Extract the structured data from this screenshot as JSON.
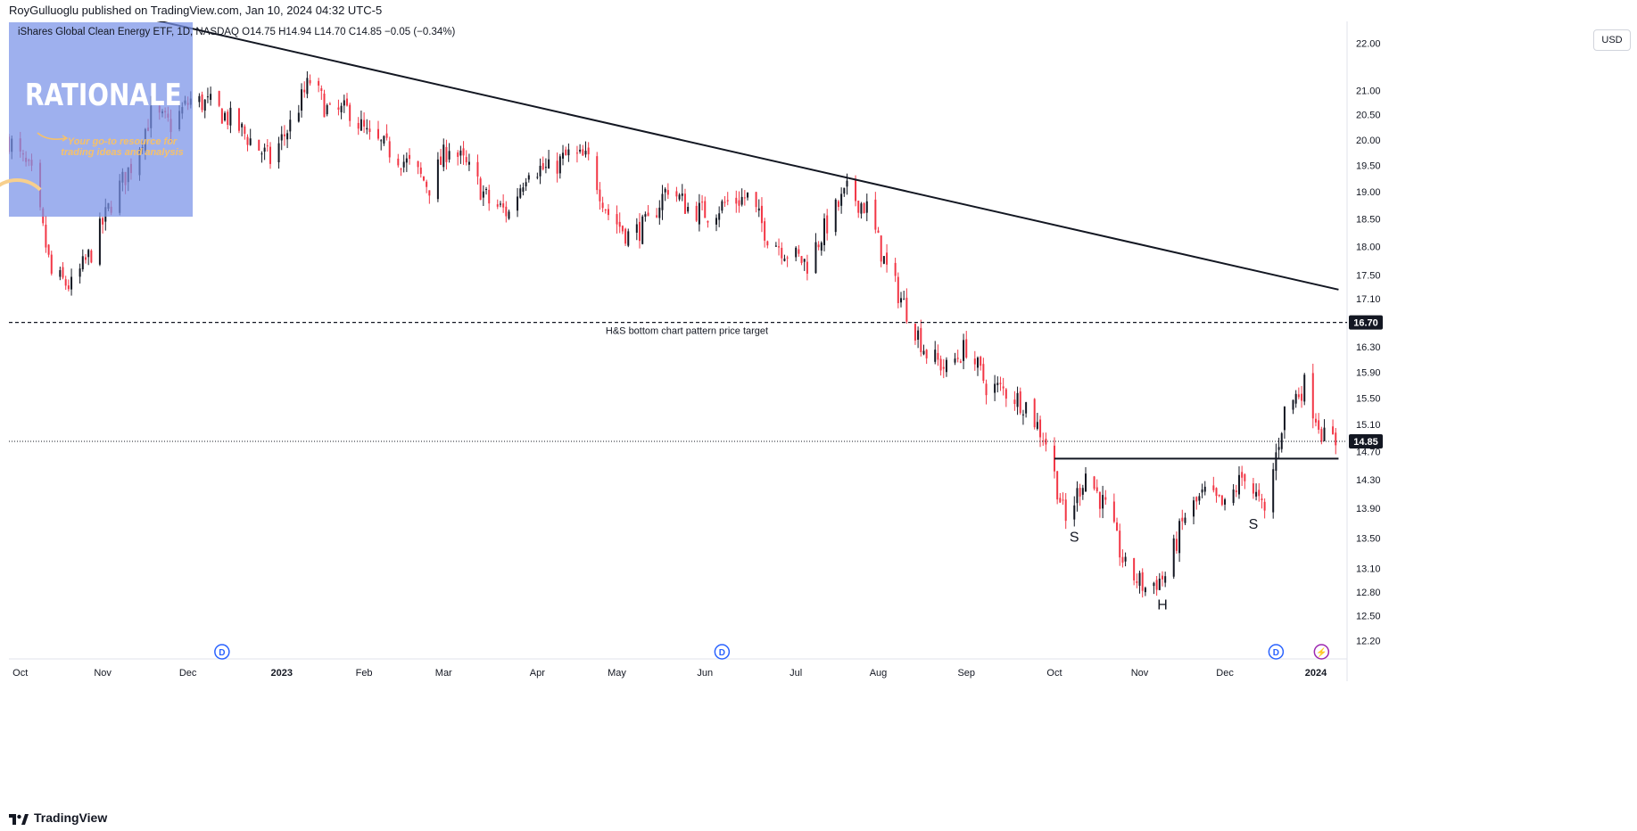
{
  "header": {
    "published_text": "RoyGulluoglu published on TradingView.com, Jan 10, 2024 04:32 UTC-5"
  },
  "symbol_line": "iShares Global Clean Energy ETF, 1D, NASDAQ  O14.75  H14.94  L14.70  C14.85  −0.05 (−0.34%)",
  "currency_button": "USD",
  "logo": {
    "title": "RATIONALE",
    "tagline": "Your go-to resource for trading ideas and analysis"
  },
  "footer": {
    "brand": "TradingView"
  },
  "colors": {
    "up": "#131722",
    "down": "#f23645",
    "trendline": "#131722",
    "dashed": "#131722",
    "dividend_badge": "#2962ff",
    "split_badge": "#9c27b0",
    "logo_bg": "#7991e8",
    "logo_tagline": "#f6c16a"
  },
  "chart_data": {
    "type": "candlestick",
    "title": "iShares Global Clean Energy ETF, 1D, NASDAQ",
    "ohlc_last": {
      "open": 14.75,
      "high": 14.94,
      "low": 14.7,
      "close": 14.85,
      "change": -0.05,
      "change_pct": -0.34
    },
    "y_axis": {
      "scale": "log",
      "ticks": [
        22.0,
        21.0,
        20.5,
        20.0,
        19.5,
        19.0,
        18.5,
        18.0,
        17.5,
        17.1,
        16.3,
        15.9,
        15.5,
        15.1,
        14.7,
        14.3,
        13.9,
        13.5,
        13.1,
        12.8,
        12.5,
        12.2
      ],
      "labels": [
        "22.00",
        "21.00",
        "20.50",
        "20.00",
        "19.50",
        "19.00",
        "18.50",
        "18.00",
        "17.50",
        "17.10",
        "16.30",
        "15.90",
        "15.50",
        "15.10",
        "14.70",
        "14.30",
        "13.90",
        "13.50",
        "13.10",
        "12.80",
        "12.50",
        "12.20"
      ],
      "highlight_labels": [
        {
          "value": 16.7,
          "label": "16.70"
        },
        {
          "value": 14.85,
          "label": "14.85"
        }
      ]
    },
    "x_axis": {
      "labels": [
        {
          "label": "Oct",
          "date": "2022-10-03",
          "bold": false
        },
        {
          "label": "Nov",
          "date": "2022-11-01",
          "bold": false
        },
        {
          "label": "Dec",
          "date": "2022-12-01",
          "bold": false
        },
        {
          "label": "2023",
          "date": "2023-01-03",
          "bold": true
        },
        {
          "label": "Feb",
          "date": "2023-02-01",
          "bold": false
        },
        {
          "label": "Mar",
          "date": "2023-03-01",
          "bold": false
        },
        {
          "label": "Apr",
          "date": "2023-04-03",
          "bold": false
        },
        {
          "label": "May",
          "date": "2023-05-01",
          "bold": false
        },
        {
          "label": "Jun",
          "date": "2023-06-01",
          "bold": false
        },
        {
          "label": "Jul",
          "date": "2023-07-03",
          "bold": false
        },
        {
          "label": "Aug",
          "date": "2023-08-01",
          "bold": false
        },
        {
          "label": "Sep",
          "date": "2023-09-01",
          "bold": false
        },
        {
          "label": "Oct",
          "date": "2023-10-02",
          "bold": false
        },
        {
          "label": "Nov",
          "date": "2023-11-01",
          "bold": false
        },
        {
          "label": "Dec",
          "date": "2023-12-01",
          "bold": false
        },
        {
          "label": "2024",
          "date": "2024-01-02",
          "bold": true
        }
      ]
    },
    "anchors": [
      {
        "date": "2022-09-29",
        "close": 20.0
      },
      {
        "date": "2022-10-07",
        "close": 19.3
      },
      {
        "date": "2022-10-14",
        "close": 17.5
      },
      {
        "date": "2022-10-21",
        "close": 17.3
      },
      {
        "date": "2022-10-28",
        "close": 17.9
      },
      {
        "date": "2022-11-04",
        "close": 18.8
      },
      {
        "date": "2022-11-11",
        "close": 19.5
      },
      {
        "date": "2022-11-18",
        "close": 20.5
      },
      {
        "date": "2022-11-25",
        "close": 20.3
      },
      {
        "date": "2022-12-02",
        "close": 20.8
      },
      {
        "date": "2022-12-09",
        "close": 20.7
      },
      {
        "date": "2022-12-16",
        "close": 20.4
      },
      {
        "date": "2022-12-23",
        "close": 20.0
      },
      {
        "date": "2022-12-30",
        "close": 19.6
      },
      {
        "date": "2023-01-06",
        "close": 20.3
      },
      {
        "date": "2023-01-13",
        "close": 21.2
      },
      {
        "date": "2023-01-20",
        "close": 20.5
      },
      {
        "date": "2023-01-27",
        "close": 20.6
      },
      {
        "date": "2023-02-03",
        "close": 20.0
      },
      {
        "date": "2023-02-10",
        "close": 19.8
      },
      {
        "date": "2023-02-17",
        "close": 19.5
      },
      {
        "date": "2023-02-24",
        "close": 19.1
      },
      {
        "date": "2023-03-03",
        "close": 19.9
      },
      {
        "date": "2023-03-10",
        "close": 19.4
      },
      {
        "date": "2023-03-17",
        "close": 18.8
      },
      {
        "date": "2023-03-24",
        "close": 18.6
      },
      {
        "date": "2023-03-31",
        "close": 19.5
      },
      {
        "date": "2023-04-07",
        "close": 19.4
      },
      {
        "date": "2023-04-14",
        "close": 19.7
      },
      {
        "date": "2023-04-21",
        "close": 19.6
      },
      {
        "date": "2023-04-28",
        "close": 18.6
      },
      {
        "date": "2023-05-05",
        "close": 18.2
      },
      {
        "date": "2023-05-12",
        "close": 18.4
      },
      {
        "date": "2023-05-19",
        "close": 19.1
      },
      {
        "date": "2023-05-26",
        "close": 18.7
      },
      {
        "date": "2023-06-02",
        "close": 18.6
      },
      {
        "date": "2023-06-09",
        "close": 18.8
      },
      {
        "date": "2023-06-16",
        "close": 18.9
      },
      {
        "date": "2023-06-23",
        "close": 18.2
      },
      {
        "date": "2023-06-30",
        "close": 17.9
      },
      {
        "date": "2023-07-07",
        "close": 17.7
      },
      {
        "date": "2023-07-14",
        "close": 18.4
      },
      {
        "date": "2023-07-21",
        "close": 19.0
      },
      {
        "date": "2023-07-28",
        "close": 18.7
      },
      {
        "date": "2023-08-04",
        "close": 17.6
      },
      {
        "date": "2023-08-11",
        "close": 16.9
      },
      {
        "date": "2023-08-18",
        "close": 16.2
      },
      {
        "date": "2023-08-25",
        "close": 15.95
      },
      {
        "date": "2023-09-01",
        "close": 16.3
      },
      {
        "date": "2023-09-08",
        "close": 15.7
      },
      {
        "date": "2023-09-15",
        "close": 15.6
      },
      {
        "date": "2023-09-22",
        "close": 15.4
      },
      {
        "date": "2023-09-29",
        "close": 14.85
      },
      {
        "date": "2023-10-06",
        "close": 13.7
      },
      {
        "date": "2023-10-13",
        "close": 14.4
      },
      {
        "date": "2023-10-20",
        "close": 13.9
      },
      {
        "date": "2023-10-27",
        "close": 13.1
      },
      {
        "date": "2023-11-03",
        "close": 12.85
      },
      {
        "date": "2023-11-10",
        "close": 13.0
      },
      {
        "date": "2023-11-17",
        "close": 13.8
      },
      {
        "date": "2023-11-24",
        "close": 14.1
      },
      {
        "date": "2023-12-01",
        "close": 13.9
      },
      {
        "date": "2023-12-08",
        "close": 14.4
      },
      {
        "date": "2023-12-15",
        "close": 13.8
      },
      {
        "date": "2023-12-22",
        "close": 15.3
      },
      {
        "date": "2023-12-29",
        "close": 15.7
      },
      {
        "date": "2024-01-05",
        "close": 14.9
      },
      {
        "date": "2024-01-09",
        "close": 14.85
      }
    ],
    "annotations": {
      "price_target_line": {
        "value": 16.7,
        "label": "H&S bottom chart pattern price target",
        "style": "dashed"
      },
      "neckline": {
        "value": 14.6,
        "from_date": "2023-10-02",
        "to_date": "2024-01-10",
        "style": "solid"
      },
      "last_price_line": {
        "value": 14.85,
        "style": "dotted"
      },
      "trendline": {
        "from": {
          "date": "2022-10-03",
          "value": 23.2
        },
        "to": {
          "date": "2024-01-10",
          "value": 17.25
        }
      },
      "pattern_labels": [
        {
          "text": "S",
          "date": "2023-10-09",
          "value": 13.45
        },
        {
          "text": "H",
          "date": "2023-11-09",
          "value": 12.58
        },
        {
          "text": "S",
          "date": "2023-12-11",
          "value": 13.62
        }
      ],
      "event_badges": [
        {
          "type": "dividend",
          "text": "D",
          "date": "2022-12-13"
        },
        {
          "type": "dividend",
          "text": "D",
          "date": "2023-06-07"
        },
        {
          "type": "dividend",
          "text": "D",
          "date": "2023-12-19"
        },
        {
          "type": "split",
          "text": "⚡",
          "date": "2024-01-04"
        }
      ]
    }
  }
}
